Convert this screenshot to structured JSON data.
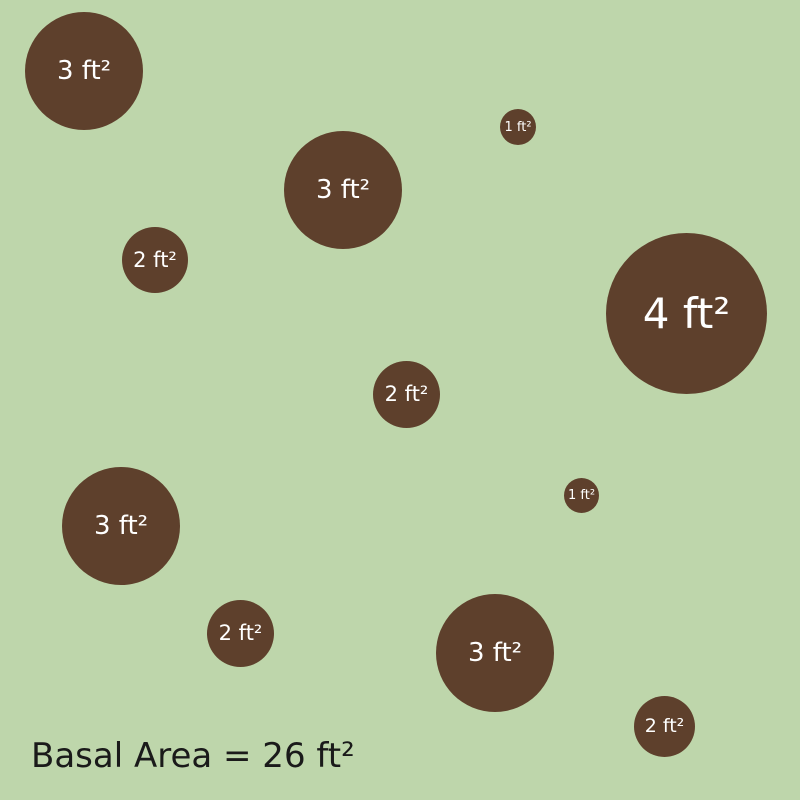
{
  "colors": {
    "background": "#bed6ab",
    "tree": "#5e402c",
    "tree_label": "#ffffff",
    "caption": "#1a1a1a"
  },
  "trees": [
    {
      "label": "3 ft²",
      "area": 3
    },
    {
      "label": "1 ft²",
      "area": 1
    },
    {
      "label": "3 ft²",
      "area": 3
    },
    {
      "label": "2 ft²",
      "area": 2
    },
    {
      "label": "4 ft²",
      "area": 4
    },
    {
      "label": "2 ft²",
      "area": 2
    },
    {
      "label": "1 ft²",
      "area": 1
    },
    {
      "label": "3 ft²",
      "area": 3
    },
    {
      "label": "2 ft²",
      "area": 2
    },
    {
      "label": "3 ft²",
      "area": 3
    },
    {
      "label": "2 ft²",
      "area": 2
    }
  ],
  "caption": "Basal Area = 26 ft²"
}
